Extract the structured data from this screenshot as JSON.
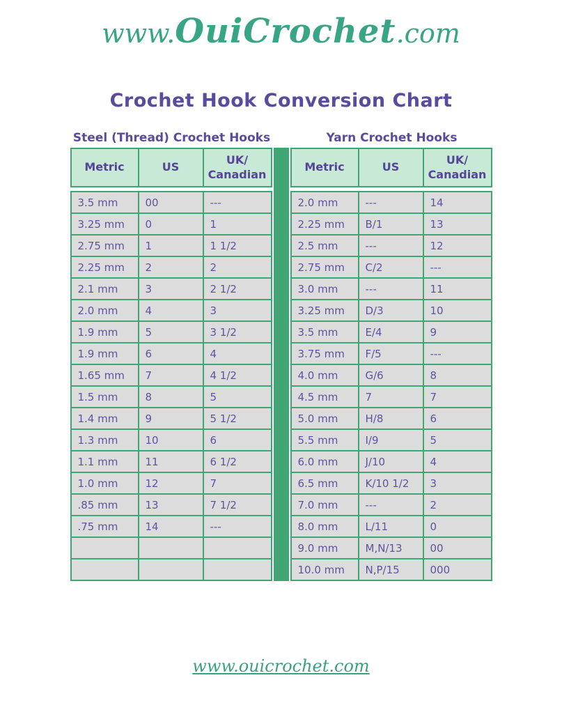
{
  "logo": {
    "prefix": "www.",
    "brand": "OuiCrochet",
    "suffix": ".com"
  },
  "title": "Crochet Hook Conversion Chart",
  "colors": {
    "logo_teal": "#3aa487",
    "title_purple": "#5c4a9e",
    "table_border_green": "#3fa573",
    "header_cell_bg": "#c7e9d5",
    "data_cell_bg": "#dcdcdc",
    "cell_text_purple": "#5f539f",
    "footer_link_green": "#3d9f82"
  },
  "steel_table": {
    "title": "Steel (Thread) Crochet Hooks",
    "headers": [
      "Metric",
      "US",
      "UK/\nCanadian"
    ],
    "rows": [
      [
        "3.5 mm",
        "00",
        "---"
      ],
      [
        "3.25 mm",
        "0",
        "1"
      ],
      [
        "2.75 mm",
        "1",
        "1 1/2"
      ],
      [
        "2.25 mm",
        "2",
        "2"
      ],
      [
        "2.1 mm",
        "3",
        "2 1/2"
      ],
      [
        "2.0 mm",
        "4",
        "3"
      ],
      [
        "1.9 mm",
        "5",
        "3 1/2"
      ],
      [
        "1.9 mm",
        "6",
        "4"
      ],
      [
        "1.65 mm",
        "7",
        "4 1/2"
      ],
      [
        "1.5 mm",
        "8",
        "5"
      ],
      [
        "1.4 mm",
        "9",
        "5 1/2"
      ],
      [
        "1.3 mm",
        "10",
        "6"
      ],
      [
        "1.1 mm",
        "11",
        "6 1/2"
      ],
      [
        "1.0 mm",
        "12",
        "7"
      ],
      [
        ".85 mm",
        "13",
        "7 1/2"
      ],
      [
        ".75 mm",
        "14",
        "---"
      ],
      [
        "",
        "",
        ""
      ],
      [
        "",
        "",
        ""
      ]
    ]
  },
  "yarn_table": {
    "title": "Yarn Crochet Hooks",
    "headers": [
      "Metric",
      "US",
      "UK/\nCanadian"
    ],
    "rows": [
      [
        "2.0 mm",
        "---",
        "14"
      ],
      [
        "2.25 mm",
        "B/1",
        "13"
      ],
      [
        "2.5 mm",
        "---",
        "12"
      ],
      [
        "2.75 mm",
        "C/2",
        "---"
      ],
      [
        "3.0 mm",
        "---",
        "11"
      ],
      [
        "3.25 mm",
        "D/3",
        "10"
      ],
      [
        "3.5 mm",
        "E/4",
        "9"
      ],
      [
        "3.75 mm",
        "F/5",
        "---"
      ],
      [
        "4.0 mm",
        "G/6",
        "8"
      ],
      [
        "4.5 mm",
        "7",
        "7"
      ],
      [
        "5.0 mm",
        "H/8",
        "6"
      ],
      [
        "5.5 mm",
        "I/9",
        "5"
      ],
      [
        "6.0 mm",
        "J/10",
        "4"
      ],
      [
        "6.5 mm",
        "K/10 1/2",
        "3"
      ],
      [
        "7.0 mm",
        "---",
        "2"
      ],
      [
        "8.0 mm",
        "L/11",
        "0"
      ],
      [
        "9.0 mm",
        "M,N/13",
        "00"
      ],
      [
        "10.0 mm",
        "N,P/15",
        "000"
      ]
    ]
  },
  "footer": {
    "link_text": "www.ouicrochet.com"
  }
}
